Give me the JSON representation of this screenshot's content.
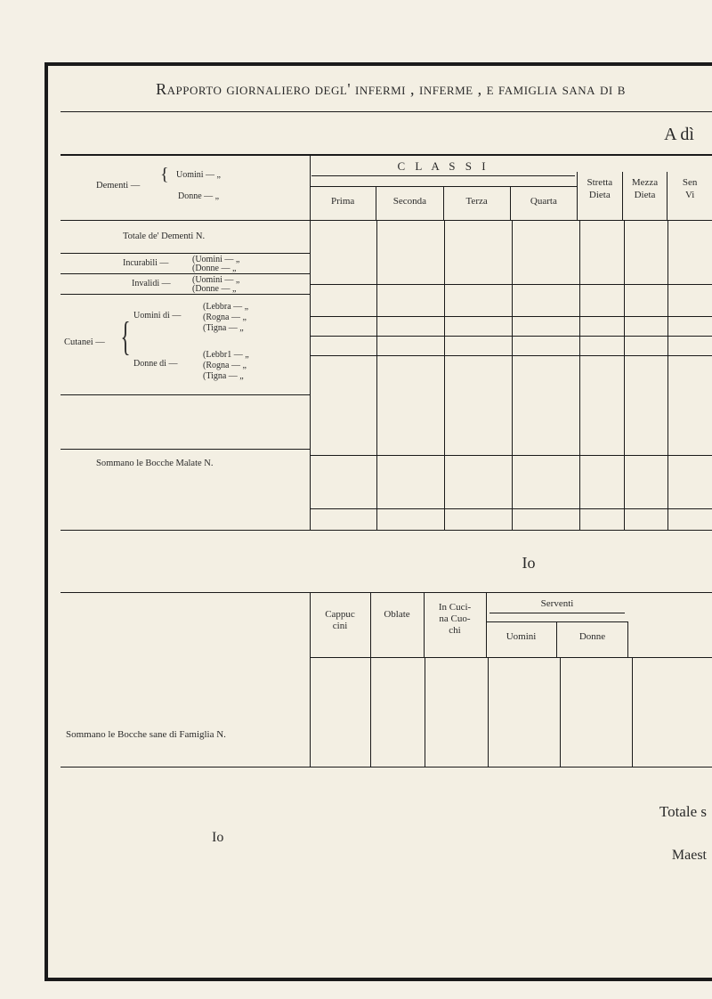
{
  "title": "Rapporto giornaliero degl' infermi , inferme , e famiglia sana di b",
  "a_di": "A dì",
  "classi": {
    "title": "C L A S S I",
    "cols": [
      "Prima",
      "Seconda",
      "Terza",
      "Quarta"
    ]
  },
  "dieta": {
    "stretta": "Stretta\nDieta",
    "mezza": "Mezza\nDieta",
    "sen": "Sen\nVi"
  },
  "left": {
    "dementi": "Dementi —",
    "dementi_u": "Uomini — „",
    "dementi_d": "Donne — „",
    "totale_dementi": "Totale de' Dementi N.",
    "incurabili": "Incurabili —",
    "incur_u": "(Uomini — „",
    "incur_d": "(Donne — „",
    "invalidi": "Invalidi —",
    "inval_u": "(Uomini — „",
    "inval_d": "(Donne — „",
    "cutanei": "Cutanei —",
    "cut_u": "Uomini di —",
    "cut_d": "Donne di —",
    "lebbra": "(Lebbra — „",
    "rogna": "(Rogna — „",
    "tigna": "(Tigna — „",
    "lebbr1": "(Lebbr1 — „",
    "rogna1": "(Rogna — „",
    "tigna1": "(Tigna — „",
    "sommano_malate": "Sommano le Bocche Malate N."
  },
  "io": "Io",
  "lower": {
    "cappuc": "Cappuc\ncini",
    "oblate": "Oblate",
    "cucina": "In Cuci-\nna Cuo-\nchi",
    "serventi": "Serventi",
    "uomini": "Uomini",
    "donne": "Donne",
    "sommano_sane": "Sommano le Bocche sane di Famiglia N."
  },
  "footer": {
    "io": "Io",
    "totale": "Totale s",
    "maes": "Maest"
  }
}
